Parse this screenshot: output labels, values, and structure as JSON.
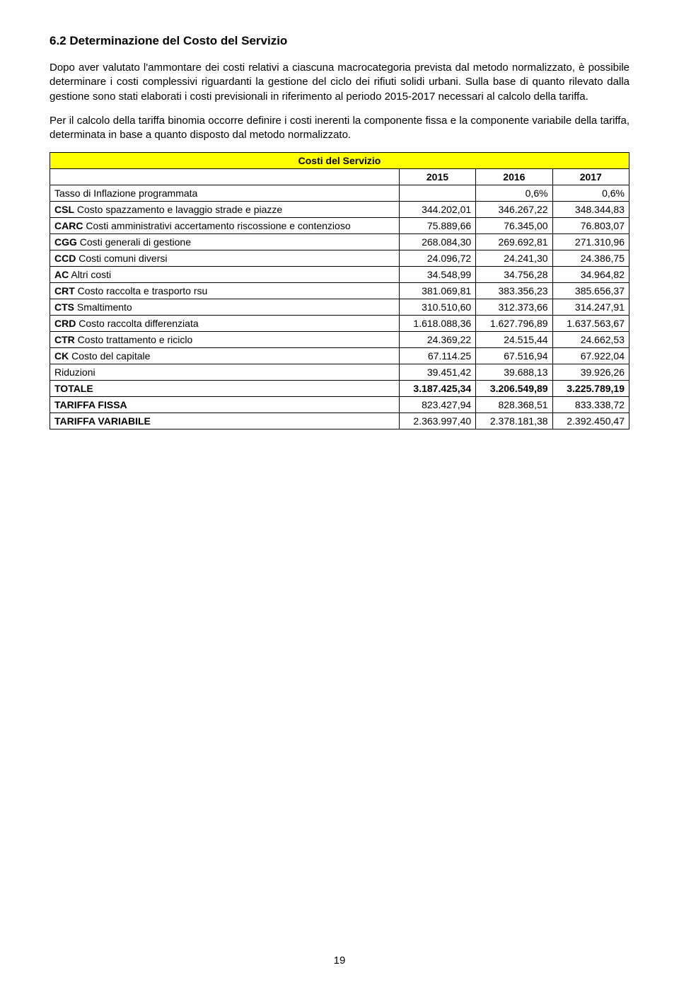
{
  "heading": "6.2 Determinazione del Costo del Servizio",
  "paragraph1": "Dopo aver valutato l'ammontare dei costi relativi a ciascuna macrocategoria prevista dal metodo normalizzato, è possibile determinare i costi complessivi riguardanti la gestione del ciclo dei rifiuti solidi urbani. Sulla base di quanto rilevato dalla gestione sono stati elaborati i costi previsionali in riferimento al periodo 2015-2017 necessari al calcolo della tariffa.",
  "paragraph2": "Per il calcolo della tariffa binomia occorre definire i costi inerenti la componente fissa e la componente variabile della tariffa, determinata in base a quanto disposto dal metodo normalizzato.",
  "table": {
    "title": "Costi del Servizio",
    "years": [
      "2015",
      "2016",
      "2017"
    ],
    "rows": [
      {
        "label": "Tasso di Inflazione programmata",
        "bold_label": false,
        "v2015": "",
        "v2016": "0,6%",
        "v2017": "0,6%",
        "bold_row": false
      },
      {
        "label_prefix": "CSL",
        "label": " Costo spazzamento e lavaggio strade e piazze",
        "bold_label": true,
        "v2015": "344.202,01",
        "v2016": "346.267,22",
        "v2017": "348.344,83",
        "bold_row": false
      },
      {
        "label_prefix": "CARC",
        "label": " Costi amministrativi accertamento riscossione e contenzioso",
        "bold_label": true,
        "v2015": "75.889,66",
        "v2016": "76.345,00",
        "v2017": "76.803,07",
        "bold_row": false
      },
      {
        "label_prefix": "CGG",
        "label": " Costi generali di gestione",
        "bold_label": true,
        "v2015": "268.084,30",
        "v2016": "269.692,81",
        "v2017": "271.310,96",
        "bold_row": false
      },
      {
        "label_prefix": "CCD",
        "label": " Costi comuni diversi",
        "bold_label": true,
        "v2015": "24.096,72",
        "v2016": "24.241,30",
        "v2017": "24.386,75",
        "bold_row": false
      },
      {
        "label_prefix": "AC",
        "label": " Altri costi",
        "bold_label": true,
        "v2015": "34.548,99",
        "v2016": "34.756,28",
        "v2017": "34.964,82",
        "bold_row": false
      },
      {
        "label_prefix": "CRT",
        "label": " Costo raccolta e trasporto rsu",
        "bold_label": true,
        "v2015": "381.069,81",
        "v2016": "383.356,23",
        "v2017": "385.656,37",
        "bold_row": false
      },
      {
        "label_prefix": "CTS",
        "label": " Smaltimento",
        "bold_label": true,
        "v2015": "310.510,60",
        "v2016": "312.373,66",
        "v2017": "314.247,91",
        "bold_row": false
      },
      {
        "label_prefix": "CRD",
        "label": " Costo raccolta differenziata",
        "bold_label": true,
        "v2015": "1.618.088,36",
        "v2016": "1.627.796,89",
        "v2017": "1.637.563,67",
        "bold_row": false
      },
      {
        "label_prefix": "CTR",
        "label": " Costo trattamento e riciclo",
        "bold_label": true,
        "v2015": "24.369,22",
        "v2016": "24.515,44",
        "v2017": "24.662,53",
        "bold_row": false
      },
      {
        "label_prefix": "CK",
        "label": " Costo del capitale",
        "bold_label": true,
        "v2015": "67.114.25",
        "v2016": "67.516,94",
        "v2017": "67.922,04",
        "bold_row": false
      },
      {
        "label": "Riduzioni",
        "bold_label": false,
        "v2015": "39.451,42",
        "v2016": "39.688,13",
        "v2017": "39.926,26",
        "bold_row": false
      },
      {
        "label": "TOTALE",
        "bold_label": true,
        "v2015": "3.187.425,34",
        "v2016": "3.206.549,89",
        "v2017": "3.225.789,19",
        "bold_row": true
      },
      {
        "label": "TARIFFA FISSA",
        "bold_label": true,
        "v2015": "823.427,94",
        "v2016": "828.368,51",
        "v2017": "833.338,72",
        "bold_row": false
      },
      {
        "label": "TARIFFA VARIABILE",
        "bold_label": true,
        "v2015": "2.363.997,40",
        "v2016": "2.378.181,38",
        "v2017": "2.392.450,47",
        "bold_row": false
      }
    ]
  },
  "page_number": "19",
  "colors": {
    "highlight_bg": "#ffff00",
    "text": "#000000",
    "border": "#000000",
    "page_bg": "#ffffff"
  }
}
